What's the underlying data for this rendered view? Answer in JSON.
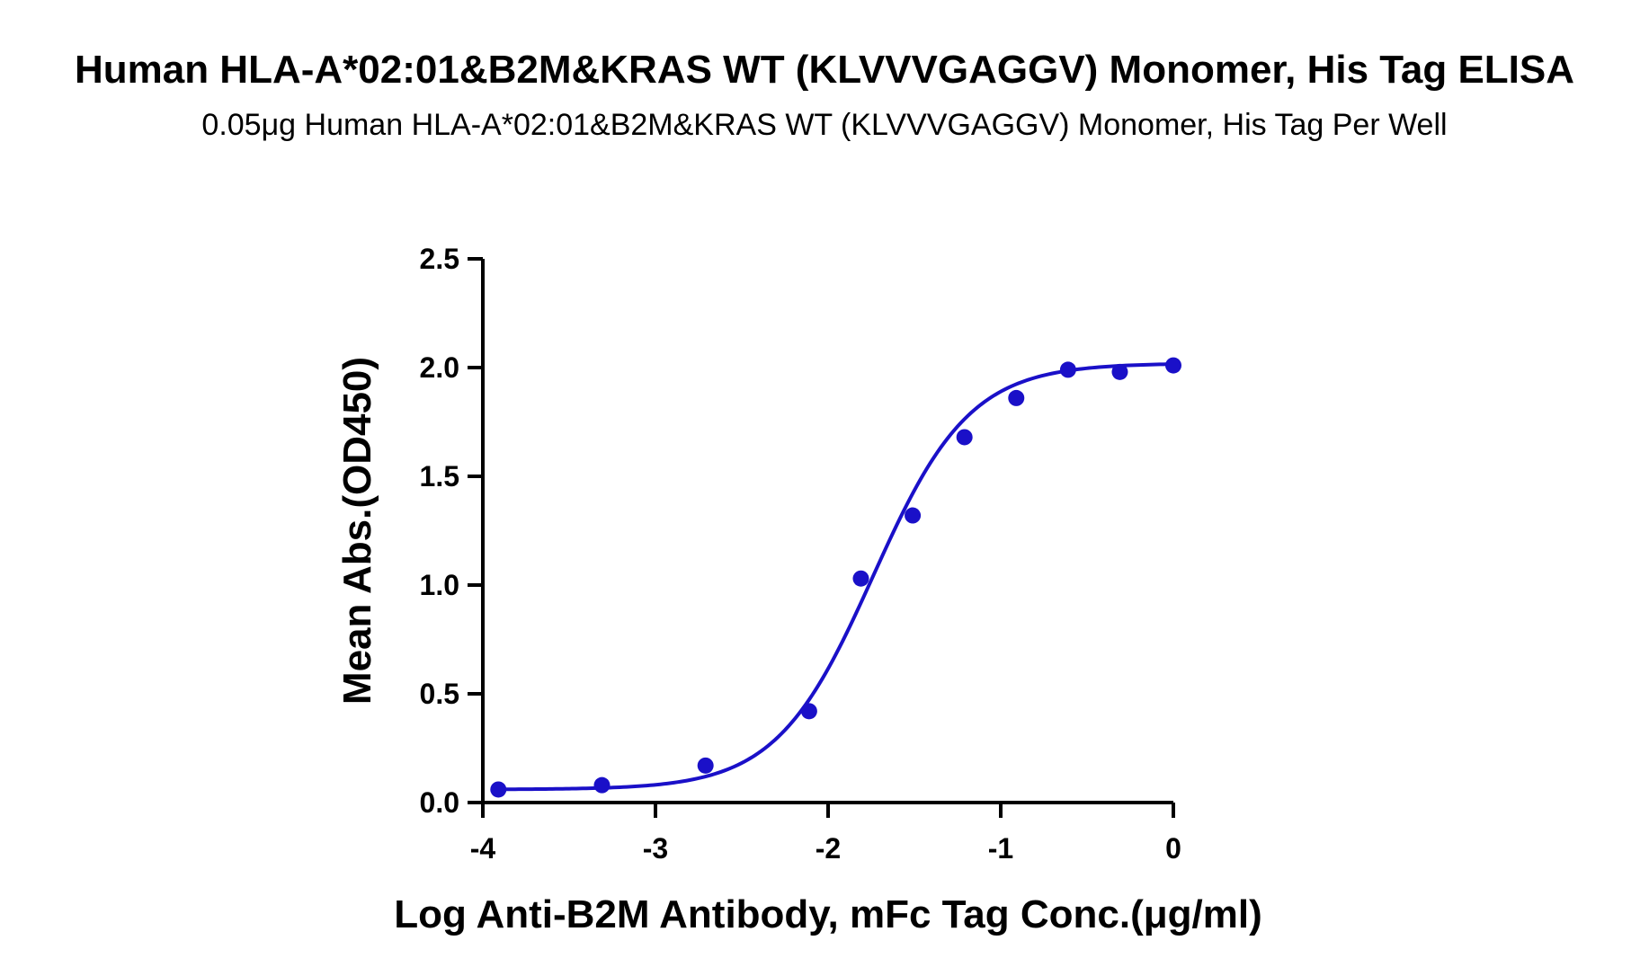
{
  "chart_data": {
    "type": "scatter",
    "title": "Human HLA-A*02:01&B2M&KRAS WT (KLVVVGAGGV) Monomer, His Tag ELISA",
    "subtitle": "0.05μg Human HLA-A*02:01&B2M&KRAS WT (KLVVVGAGGV) Monomer, His Tag Per Well",
    "xlabel": "Log Anti-B2M Antibody, mFc Tag Conc.(μg/ml)",
    "ylabel": "Mean Abs.(OD450)",
    "xlim": [
      -4,
      0
    ],
    "ylim": [
      0,
      2.5
    ],
    "x_ticks": [
      -4,
      -3,
      -2,
      -1,
      0
    ],
    "x_tick_labels": [
      "-4",
      "-3",
      "-2",
      "-1",
      "0"
    ],
    "y_ticks": [
      0,
      0.5,
      1.0,
      1.5,
      2.0,
      2.5
    ],
    "y_tick_labels": [
      "0.0",
      "0.5",
      "1.0",
      "1.5",
      "2.0",
      "2.5"
    ],
    "grid": false,
    "legend": "none",
    "series": [
      {
        "x": [
          -3.91,
          -3.31,
          -2.71,
          -2.11,
          -1.81,
          -1.51,
          -1.21,
          -0.91,
          -0.61,
          -0.31,
          0.0
        ],
        "y": [
          0.06,
          0.08,
          0.17,
          0.42,
          1.03,
          1.32,
          1.68,
          1.86,
          1.99,
          1.98,
          2.01
        ],
        "color": "#1a10c8",
        "fit": {
          "model": "4PL",
          "bottom": 0.06,
          "top": 2.02,
          "logEC50": -1.74,
          "hill": 1.55
        }
      }
    ]
  }
}
